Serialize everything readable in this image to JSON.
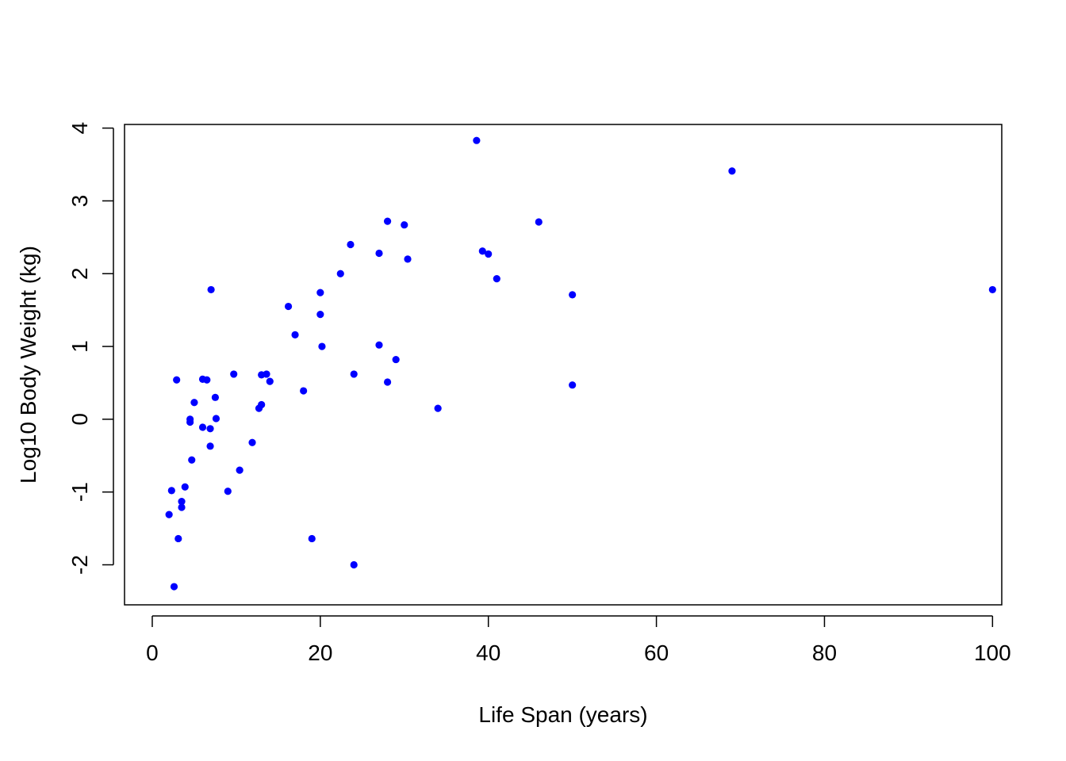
{
  "chart_data": {
    "type": "scatter",
    "title": "",
    "xlabel": "Life Span (years)",
    "ylabel": "Log10 Body Weight (kg)",
    "xlim": [
      -3.3,
      101.1
    ],
    "ylim": [
      -2.55,
      4.05
    ],
    "x_ticks": [
      0,
      20,
      40,
      60,
      80,
      100
    ],
    "y_ticks": [
      -2,
      -1,
      0,
      1,
      2,
      3,
      4
    ],
    "x_tick_labels": [
      "0",
      "20",
      "40",
      "60",
      "80",
      "100"
    ],
    "y_tick_labels": [
      "-2",
      "-1",
      "0",
      "1",
      "2",
      "3",
      "4"
    ],
    "grid": false,
    "legend": null,
    "point_color": "#0000FF",
    "series": [
      {
        "points": [
          [
            2.0,
            -1.31
          ],
          [
            2.3,
            -0.98
          ],
          [
            2.6,
            -2.3
          ],
          [
            2.9,
            0.54
          ],
          [
            3.1,
            -1.64
          ],
          [
            3.5,
            -1.13
          ],
          [
            3.5,
            -1.21
          ],
          [
            3.9,
            -0.93
          ],
          [
            4.5,
            0.0
          ],
          [
            4.5,
            -0.04
          ],
          [
            4.7,
            -0.56
          ],
          [
            5.0,
            0.23
          ],
          [
            6.0,
            0.55
          ],
          [
            6.0,
            -0.11
          ],
          [
            6.5,
            0.54
          ],
          [
            6.9,
            -0.13
          ],
          [
            6.9,
            -0.37
          ],
          [
            7.0,
            1.78
          ],
          [
            7.5,
            0.3
          ],
          [
            7.6,
            0.01
          ],
          [
            9.0,
            -0.99
          ],
          [
            9.7,
            0.62
          ],
          [
            10.4,
            -0.7
          ],
          [
            11.9,
            -0.32
          ],
          [
            12.7,
            0.15
          ],
          [
            13.0,
            0.2
          ],
          [
            13.0,
            0.61
          ],
          [
            13.6,
            0.62
          ],
          [
            14.0,
            0.52
          ],
          [
            16.2,
            1.55
          ],
          [
            17.0,
            1.16
          ],
          [
            18.0,
            0.39
          ],
          [
            19.0,
            -1.64
          ],
          [
            20.0,
            1.74
          ],
          [
            20.0,
            1.44
          ],
          [
            20.2,
            1.0
          ],
          [
            22.4,
            2.0
          ],
          [
            23.6,
            2.4
          ],
          [
            24.0,
            0.62
          ],
          [
            24.0,
            -2.0
          ],
          [
            27.0,
            2.28
          ],
          [
            27.0,
            1.02
          ],
          [
            28.0,
            2.72
          ],
          [
            28.0,
            0.51
          ],
          [
            29.0,
            0.82
          ],
          [
            30.0,
            2.67
          ],
          [
            30.4,
            2.2
          ],
          [
            34.0,
            0.15
          ],
          [
            38.6,
            3.83
          ],
          [
            39.3,
            2.31
          ],
          [
            40.0,
            2.27
          ],
          [
            41.0,
            1.93
          ],
          [
            46.0,
            2.71
          ],
          [
            50.0,
            1.71
          ],
          [
            50.0,
            0.47
          ],
          [
            69.0,
            3.41
          ],
          [
            100.0,
            1.78
          ]
        ]
      }
    ]
  }
}
